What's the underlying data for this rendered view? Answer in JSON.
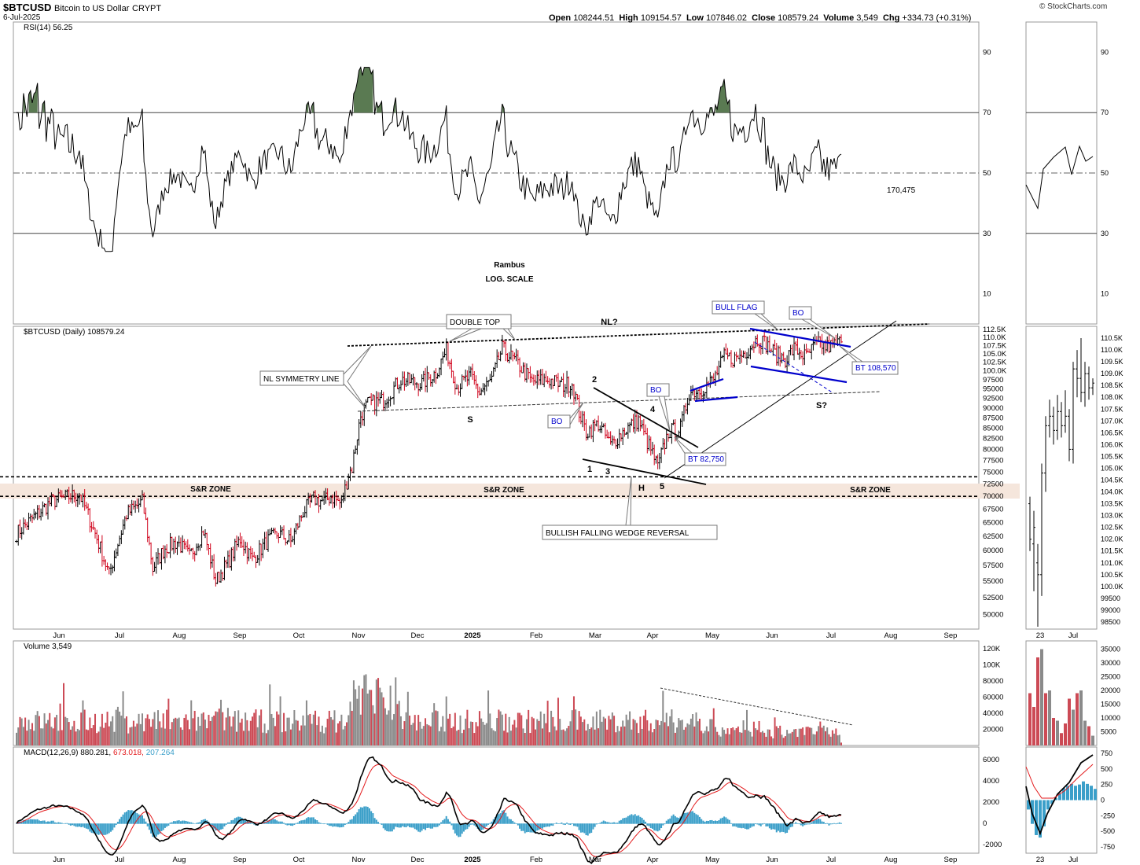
{
  "header": {
    "ticker": "$BTCUSD",
    "name": "Bitcoin to US Dollar",
    "type": "CRYPT",
    "date": "6-Jul-2025",
    "open_label": "Open",
    "open": "108244.51",
    "high_label": "High",
    "high": "109154.57",
    "low_label": "Low",
    "low": "107846.02",
    "close_label": "Close",
    "close": "108579.24",
    "volume_label": "Volume",
    "volume": "3,549",
    "chg_label": "Chg",
    "chg": "+334.73 (+0.31%)",
    "brand": "© StockCharts.com"
  },
  "colors": {
    "up": "#000000",
    "down": "#d0021b",
    "rsi_fill": "#5a7a52",
    "rsi_low_fill": "#9c3b3b",
    "trend_blue": "#0000cc",
    "sr_zone": "#f5e6dc",
    "macd_signal": "#e31a1c",
    "histogram": "#3b9fc9",
    "vol_up": "#8a8a8a",
    "vol_down": "#cc4a55"
  },
  "annotations": {
    "rambus": "Rambus",
    "log_scale": "LOG. SCALE",
    "double_top": "DOUBLE TOP",
    "nl": "NL?",
    "nl_symmetry": "NL SYMMETRY LINE",
    "bull_flag": "BULL FLAG",
    "bo": "BO",
    "bt1": "BT 82,750",
    "bt2": "BT 108,570",
    "s": "S",
    "s2": "S?",
    "h": "H",
    "sr_zone": "S&R ZONE",
    "wedge": "BULLISH  FALLING WEDGE REVERSAL",
    "rsi_val": "170,475",
    "n1": "1",
    "n2": "2",
    "n3": "3",
    "n4": "4",
    "n5": "5"
  },
  "chart_data": [
    {
      "type": "line",
      "title": "RSI(14) 56.25",
      "ylim": [
        0,
        100
      ],
      "yticks": [
        10,
        30,
        50,
        70,
        90
      ]
    },
    {
      "type": "candlestick",
      "title": "$BTCUSD (Daily) 108579.24",
      "scale": "log",
      "ylim": [
        48000,
        113500
      ],
      "yticks": [
        50000,
        52500,
        55000,
        57500,
        60000,
        62500,
        65000,
        67500,
        70000,
        72500,
        75000,
        77500,
        80000,
        82500,
        85000,
        87500,
        90000,
        92500,
        95000,
        97500,
        100000,
        102500,
        105000,
        107500,
        110000,
        112500
      ],
      "ytick_labels": [
        "50000",
        "52500",
        "55000",
        "57500",
        "60000",
        "62500",
        "65000",
        "67500",
        "70000",
        "72500",
        "75000",
        "77500",
        "80000",
        "82500",
        "85000",
        "87500",
        "90000",
        "92500",
        "95000",
        "97500",
        "100.0K",
        "102.5K",
        "105.0K",
        "107.5K",
        "110.0K",
        "112.5K"
      ],
      "xticks": [
        "Jun",
        "Jul",
        "Aug",
        "Sep",
        "Oct",
        "Nov",
        "Dec",
        "2025",
        "Feb",
        "Mar",
        "Apr",
        "May",
        "Jun",
        "Jul",
        "Aug",
        "Sep"
      ],
      "series": [
        {
          "name": "$BTCUSD",
          "keypoints": [
            [
              0,
              63000
            ],
            [
              20,
              69000
            ],
            [
              36,
              70500
            ],
            [
              45,
              63000
            ],
            [
              53,
              56000
            ],
            [
              63,
              66500
            ],
            [
              72,
              69000
            ],
            [
              78,
              57000
            ],
            [
              85,
              60500
            ],
            [
              92,
              61500
            ],
            [
              99,
              59000
            ],
            [
              107,
              63500
            ],
            [
              114,
              55000
            ],
            [
              121,
              58000
            ],
            [
              128,
              62000
            ],
            [
              135,
              58500
            ],
            [
              143,
              61500
            ],
            [
              150,
              63000
            ],
            [
              157,
              61500
            ],
            [
              164,
              67000
            ],
            [
              170,
              69500
            ],
            [
              176,
              69000
            ],
            [
              180,
              70000
            ],
            [
              186,
              68500
            ],
            [
              190,
              74500
            ],
            [
              192,
              76000
            ],
            [
              197,
              88000
            ],
            [
              201,
              91000
            ],
            [
              210,
              92000
            ],
            [
              220,
              97500
            ],
            [
              232,
              96500
            ],
            [
              240,
              99500
            ],
            [
              246,
              106000
            ],
            [
              252,
              95500
            ],
            [
              260,
              98500
            ],
            [
              265,
              94000
            ],
            [
              272,
              97500
            ],
            [
              278,
              106500
            ],
            [
              286,
              102500
            ],
            [
              295,
              97000
            ],
            [
              305,
              97500
            ],
            [
              312,
              96000
            ],
            [
              318,
              96500
            ],
            [
              322,
              89000
            ],
            [
              326,
              84000
            ],
            [
              333,
              86000
            ],
            [
              340,
              81000
            ],
            [
              348,
              84500
            ],
            [
              356,
              87000
            ],
            [
              360,
              82500
            ],
            [
              364,
              79000
            ],
            [
              367,
              76000
            ],
            [
              373,
              84000
            ],
            [
              380,
              85000
            ],
            [
              385,
              94000
            ],
            [
              392,
              95000
            ],
            [
              399,
              97500
            ],
            [
              405,
              104000
            ],
            [
              412,
              103500
            ],
            [
              418,
              106000
            ],
            [
              424,
              109500
            ],
            [
              428,
              108500
            ],
            [
              434,
              105000
            ],
            [
              440,
              103500
            ],
            [
              445,
              106500
            ],
            [
              452,
              104000
            ],
            [
              457,
              107500
            ],
            [
              460,
              108000
            ],
            [
              463,
              107000
            ],
            [
              467,
              107500
            ],
            [
              470,
              108100
            ],
            [
              472,
              108579.24
            ]
          ]
        }
      ]
    },
    {
      "type": "bar",
      "title": "Volume 3,549",
      "ylim": [
        0,
        130000
      ],
      "yticks": [
        20000,
        40000,
        60000,
        80000,
        100000,
        120000
      ],
      "ytick_labels": [
        "20000",
        "40000",
        "60000",
        "80000",
        "100K",
        "120K"
      ]
    },
    {
      "type": "line",
      "title": "MACD(12,26,9) 880.281, 673.018, 207.264",
      "series": [
        {
          "name": "MACD",
          "value": "880.281"
        },
        {
          "name": "Signal",
          "value": "673.018"
        },
        {
          "name": "Histogram",
          "value": "207.264"
        }
      ],
      "ylim": [
        -2800,
        7200
      ],
      "yticks": [
        -2000,
        0,
        2000,
        4000,
        6000
      ]
    },
    {
      "type": "candlestick",
      "title": "inset",
      "ylim": [
        98200,
        111000
      ],
      "yticks": [
        98500,
        99000,
        99500,
        100000,
        100500,
        101000,
        101500,
        102000,
        102500,
        103000,
        103500,
        104000,
        104500,
        105000,
        105500,
        106000,
        106500,
        107000,
        107500,
        108000,
        108500,
        109000,
        109500,
        110000,
        110500
      ],
      "ytick_labels": [
        "98500",
        "99000",
        "99500",
        "100.0K",
        "100.5K",
        "101.0K",
        "101.5K",
        "102.0K",
        "102.5K",
        "103.0K",
        "103.5K",
        "104.0K",
        "104.5K",
        "105.0K",
        "105.5K",
        "106.0K",
        "106.5K",
        "107.0K",
        "107.5K",
        "108.0K",
        "108.5K",
        "109.0K",
        "109.5K",
        "110.0K",
        "110.5K"
      ],
      "rsi_yticks": [
        10,
        30,
        50,
        70,
        90
      ],
      "vol_yticks": [
        5000,
        10000,
        15000,
        20000,
        25000,
        30000,
        35000
      ],
      "macd_yticks": [
        -750,
        -500,
        -250,
        0,
        250,
        500,
        750
      ],
      "xticks": [
        "23",
        "Jul"
      ]
    }
  ]
}
